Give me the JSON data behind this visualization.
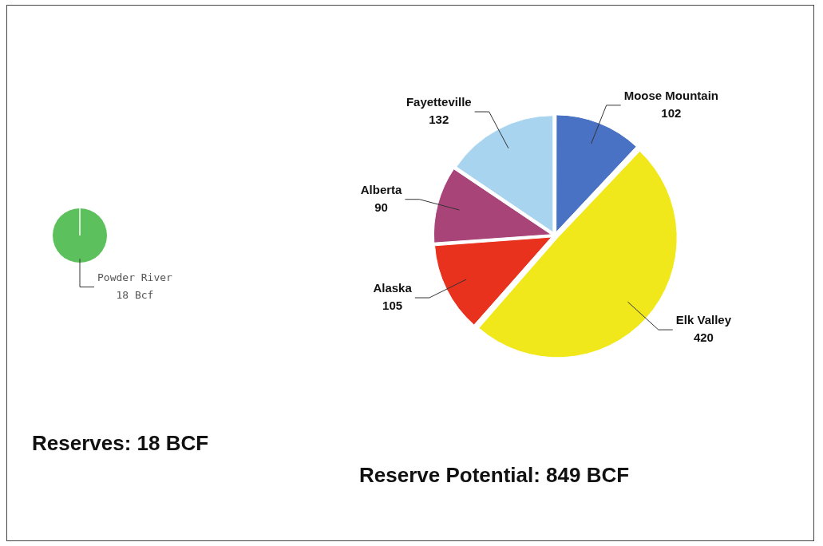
{
  "chart_data": [
    {
      "type": "pie",
      "categories": [
        "Powder River"
      ],
      "values": [
        18
      ],
      "colors": [
        "#5cc05c"
      ],
      "value_labels": [
        "18 Bcf"
      ],
      "annotations": [
        "Reserves: 18 BCF"
      ]
    },
    {
      "type": "pie",
      "categories": [
        "Moose Mountain",
        "Elk Valley",
        "Alaska",
        "Alberta",
        "Fayetteville"
      ],
      "values": [
        102,
        420,
        105,
        90,
        132
      ],
      "colors": [
        "#4a72c4",
        "#f0e81a",
        "#e8321e",
        "#a84478",
        "#a8d4f0"
      ],
      "data_labels": true,
      "annotations": [
        "Reserve Potential: 849 BCF"
      ]
    }
  ]
}
